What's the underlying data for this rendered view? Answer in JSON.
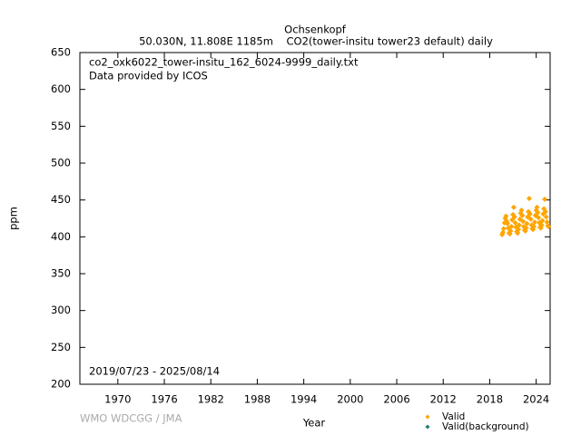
{
  "chart_data": {
    "type": "scatter",
    "title": "Ochsenkopf",
    "subtitle": "50.030N, 11.808E 1185m    CO2(tower-insitu tower23 default) daily",
    "annotations": [
      "co2_oxk6022_tower-insitu_162_6024-9999_daily.txt",
      "Data provided by ICOS",
      "2019/07/23 - 2025/08/14",
      "WMO WDCGG / JMA"
    ],
    "xlabel": "Year",
    "ylabel": "ppm",
    "xlim": [
      1965.1,
      2025.8
    ],
    "xticks": [
      1970,
      1976,
      1982,
      1988,
      1994,
      2000,
      2006,
      2012,
      2018,
      2024
    ],
    "ylim": [
      200,
      650
    ],
    "yticks": [
      200,
      250,
      300,
      350,
      400,
      450,
      500,
      550,
      600,
      650
    ],
    "grid": false,
    "legend": "bottom-right",
    "x": [
      2019.6,
      2019.7,
      2019.8,
      2019.9,
      2020.0,
      2020.1,
      2020.2,
      2020.3,
      2020.4,
      2020.5,
      2020.6,
      2020.7,
      2020.8,
      2020.9,
      2021.0,
      2021.1,
      2021.2,
      2021.3,
      2021.4,
      2021.5,
      2021.6,
      2021.7,
      2021.8,
      2021.9,
      2022.0,
      2022.1,
      2022.2,
      2022.3,
      2022.4,
      2022.5,
      2022.6,
      2022.7,
      2022.8,
      2022.9,
      2023.0,
      2023.1,
      2023.2,
      2023.3,
      2023.4,
      2023.5,
      2023.6,
      2023.7,
      2023.8,
      2023.9,
      2024.0,
      2024.1,
      2024.2,
      2024.3,
      2024.4,
      2024.5,
      2024.6,
      2024.7,
      2024.8,
      2024.9,
      2025.0,
      2025.1,
      2025.2,
      2025.3,
      2025.4,
      2025.5,
      2025.6
    ],
    "series": [
      {
        "name": "Valid",
        "color": "#ffa500",
        "values": [
          403,
          406,
          411,
          419,
          425,
          428,
          421,
          418,
          412,
          405,
          404,
          408,
          414,
          423,
          430,
          440,
          427,
          419,
          413,
          407,
          405,
          410,
          416,
          424,
          432,
          436,
          429,
          421,
          414,
          409,
          408,
          412,
          418,
          427,
          434,
          452,
          431,
          424,
          416,
          411,
          410,
          414,
          420,
          429,
          436,
          440,
          433,
          426,
          419,
          413,
          412,
          416,
          422,
          431,
          438,
          451,
          434,
          427,
          420,
          415,
          414
        ]
      },
      {
        "name": "Valid(background)",
        "color": "#1f7f6f",
        "values": [
          null,
          null,
          null,
          null,
          null,
          null,
          null,
          null,
          null,
          null,
          null,
          null,
          null,
          null,
          null,
          null,
          null,
          null,
          null,
          null,
          null,
          null,
          null,
          null,
          null,
          null,
          null,
          null,
          null,
          null,
          null,
          null,
          null,
          null,
          null,
          null,
          null,
          null,
          null,
          null,
          null,
          null,
          null,
          null,
          null,
          null,
          null,
          null,
          null,
          null,
          null,
          null,
          null,
          null,
          null,
          null,
          null,
          null,
          null,
          null,
          null
        ]
      }
    ]
  }
}
